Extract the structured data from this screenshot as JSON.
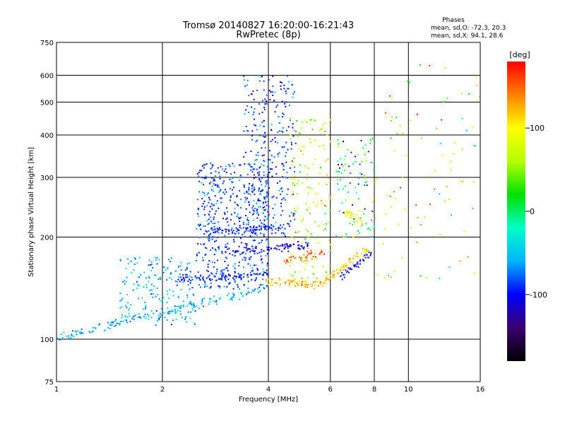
{
  "chart_data": {
    "type": "scatter",
    "title": "Tromsø 20140827 16:20:00-16:21:43",
    "subtitle": "RwPretec (8p)",
    "xlabel": "Frequency [MHz]",
    "ylabel": "Stationary phase Virtual Height [km]",
    "x_scale": "log",
    "y_scale": "log",
    "xlim": [
      1,
      16
    ],
    "ylim": [
      75,
      750
    ],
    "x_ticks": [
      1,
      2,
      4,
      6,
      8,
      10,
      16
    ],
    "y_ticks": [
      75,
      100,
      200,
      300,
      400,
      500,
      600,
      750
    ],
    "grid": true,
    "phases_header": "Phases",
    "phases_o": "mean, sd,O: -72.3, 20.3",
    "phases_x": "mean, sd,X:  94.1, 28.6",
    "colorbar": {
      "label": "[deg]",
      "range": [
        -180,
        180
      ],
      "ticks": [
        100,
        0,
        -100
      ],
      "colormap": [
        "#000000",
        "#3b0070",
        "#0000ff",
        "#00b4ff",
        "#00ffc8",
        "#00e000",
        "#b4ff00",
        "#ffff00",
        "#ff8000",
        "#ff0000"
      ]
    },
    "traces": [
      {
        "name": "",
        "x_range": [
          1.0,
          3.9
        ],
        "height_start": 100,
        "height_end": 140,
        "phase": -60,
        "n": 160
      },
      {
        "name": "",
        "x_range": [
          2.2,
          4.0
        ],
        "height_start": 150,
        "height_end": 155,
        "phase": -95,
        "n": 90
      },
      {
        "name": "",
        "x_range": [
          3.9,
          5.8
        ],
        "height_start": 148,
        "height_end": 146,
        "phase": 120,
        "n": 80
      },
      {
        "name": "",
        "x_range": [
          5.8,
          7.7
        ],
        "height_start": 148,
        "height_end": 185,
        "phase": 115,
        "n": 70
      },
      {
        "name": "",
        "x_range": [
          3.0,
          5.2
        ],
        "height_start": 180,
        "height_end": 190,
        "phase": -110,
        "n": 90
      },
      {
        "name": "",
        "x_range": [
          4.4,
          5.8
        ],
        "height_start": 170,
        "height_end": 180,
        "phase": 150,
        "n": 40
      },
      {
        "name": "",
        "x_range": [
          6.4,
          7.9
        ],
        "height_start": 152,
        "height_end": 180,
        "phase": -105,
        "n": 40
      },
      {
        "name": "",
        "x_range": [
          2.6,
          4.6
        ],
        "height_start": 205,
        "height_end": 215,
        "phase": -95,
        "n": 80
      },
      {
        "name": "",
        "x_range": [
          6.6,
          7.4
        ],
        "height_start": 240,
        "height_end": 220,
        "phase": 95,
        "n": 30
      }
    ],
    "clouds": [
      {
        "x_range": [
          1.5,
          2.5
        ],
        "y_range": [
          110,
          175
        ],
        "phase": -60,
        "sd": 30,
        "n": 200
      },
      {
        "x_range": [
          2.5,
          4.0
        ],
        "y_range": [
          140,
          330
        ],
        "phase": -90,
        "sd": 35,
        "n": 500
      },
      {
        "x_range": [
          3.4,
          4.8
        ],
        "y_range": [
          200,
          600
        ],
        "phase": -90,
        "sd": 35,
        "n": 300
      },
      {
        "x_range": [
          4.6,
          6.0
        ],
        "y_range": [
          150,
          450
        ],
        "phase": 80,
        "sd": 60,
        "n": 150
      },
      {
        "x_range": [
          6.2,
          8.0
        ],
        "y_range": [
          200,
          400
        ],
        "phase": -20,
        "sd": 110,
        "n": 100
      },
      {
        "x_range": [
          8.0,
          16.0
        ],
        "y_range": [
          150,
          650
        ],
        "phase": 70,
        "sd": 90,
        "n": 90
      }
    ]
  }
}
